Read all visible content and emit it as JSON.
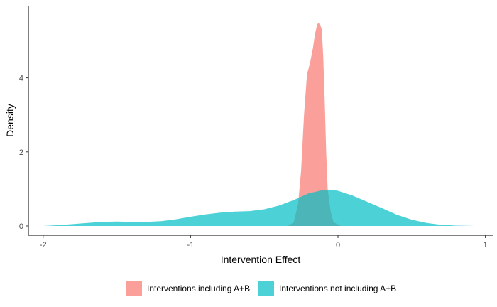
{
  "chart_data": {
    "type": "area",
    "subtype": "density",
    "title": "",
    "xlabel": "Intervention Effect",
    "ylabel": "Density",
    "xlim": [
      -2.1,
      1.05
    ],
    "ylim": [
      -0.25,
      5.95
    ],
    "x_ticks": [
      -2,
      -1,
      0,
      1
    ],
    "y_ticks": [
      0,
      2,
      4
    ],
    "grid": false,
    "legend_position": "bottom",
    "series": [
      {
        "name": "Interventions including A+B",
        "color": "#F8766D",
        "opacity": 0.7,
        "points": [
          [
            -0.34,
            0.0
          ],
          [
            -0.3,
            0.1
          ],
          [
            -0.27,
            0.6
          ],
          [
            -0.25,
            1.5
          ],
          [
            -0.23,
            3.0
          ],
          [
            -0.21,
            4.1
          ],
          [
            -0.19,
            4.4
          ],
          [
            -0.17,
            4.8
          ],
          [
            -0.155,
            5.2
          ],
          [
            -0.14,
            5.45
          ],
          [
            -0.125,
            5.5
          ],
          [
            -0.11,
            5.3
          ],
          [
            -0.1,
            4.6
          ],
          [
            -0.09,
            3.4
          ],
          [
            -0.08,
            2.0
          ],
          [
            -0.07,
            1.0
          ],
          [
            -0.05,
            0.4
          ],
          [
            -0.03,
            0.1
          ],
          [
            0.02,
            0.0
          ]
        ]
      },
      {
        "name": "Interventions not including A+B",
        "color": "#00BFC4",
        "opacity": 0.7,
        "points": [
          [
            -2.0,
            0.0
          ],
          [
            -1.9,
            0.02
          ],
          [
            -1.8,
            0.05
          ],
          [
            -1.7,
            0.08
          ],
          [
            -1.6,
            0.11
          ],
          [
            -1.5,
            0.12
          ],
          [
            -1.4,
            0.11
          ],
          [
            -1.3,
            0.11
          ],
          [
            -1.2,
            0.13
          ],
          [
            -1.1,
            0.18
          ],
          [
            -1.0,
            0.25
          ],
          [
            -0.9,
            0.31
          ],
          [
            -0.8,
            0.36
          ],
          [
            -0.7,
            0.39
          ],
          [
            -0.6,
            0.4
          ],
          [
            -0.5,
            0.45
          ],
          [
            -0.4,
            0.55
          ],
          [
            -0.3,
            0.7
          ],
          [
            -0.2,
            0.88
          ],
          [
            -0.1,
            0.97
          ],
          [
            -0.05,
            0.98
          ],
          [
            0.0,
            0.95
          ],
          [
            0.1,
            0.82
          ],
          [
            0.2,
            0.65
          ],
          [
            0.3,
            0.48
          ],
          [
            0.4,
            0.3
          ],
          [
            0.5,
            0.17
          ],
          [
            0.6,
            0.08
          ],
          [
            0.7,
            0.03
          ],
          [
            0.8,
            0.01
          ],
          [
            0.93,
            0.0
          ]
        ]
      }
    ]
  }
}
